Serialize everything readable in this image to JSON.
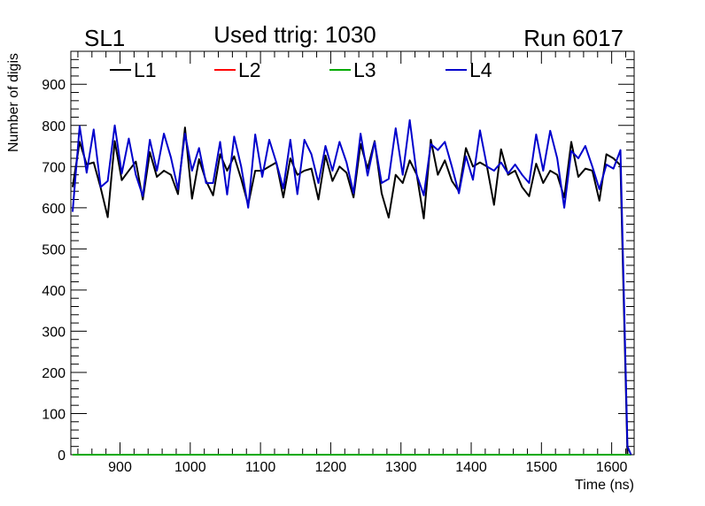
{
  "header": {
    "left_label": "SL1",
    "center_label": "Used ttrig: 1030",
    "right_label": "Run 6017"
  },
  "chart_data": {
    "type": "line",
    "title": "Used ttrig: 1030",
    "xlabel": "Time (ns)",
    "ylabel": "Number of digis",
    "xlim": [
      830,
      1632
    ],
    "ylim": [
      0,
      980
    ],
    "xticks": [
      900,
      1000,
      1100,
      1200,
      1300,
      1400,
      1500,
      1600
    ],
    "yticks": [
      0,
      100,
      200,
      300,
      400,
      500,
      600,
      700,
      800,
      900
    ],
    "legend_position": "top-left",
    "series": [
      {
        "name": "L1",
        "color": "#000000",
        "x": [
          832.5,
          842.5,
          852.5,
          862.5,
          872.5,
          882.5,
          892.5,
          902.5,
          912.5,
          922.5,
          932.5,
          942.5,
          952.5,
          962.5,
          972.5,
          982.5,
          992.5,
          1002.5,
          1012.5,
          1022.5,
          1032.5,
          1042.5,
          1052.5,
          1062.5,
          1072.5,
          1082.5,
          1092.5,
          1102.5,
          1112.5,
          1122.5,
          1132.5,
          1142.5,
          1152.5,
          1162.5,
          1172.5,
          1182.5,
          1192.5,
          1202.5,
          1212.5,
          1222.5,
          1232.5,
          1242.5,
          1252.5,
          1262.5,
          1272.5,
          1282.5,
          1292.5,
          1302.5,
          1312.5,
          1322.5,
          1332.5,
          1342.5,
          1352.5,
          1362.5,
          1372.5,
          1382.5,
          1392.5,
          1402.5,
          1412.5,
          1422.5,
          1432.5,
          1442.5,
          1452.5,
          1462.5,
          1472.5,
          1482.5,
          1492.5,
          1502.5,
          1512.5,
          1522.5,
          1532.5,
          1542.5,
          1552.5,
          1562.5,
          1572.5,
          1582.5,
          1592.5,
          1602.5,
          1612.5,
          1622.5,
          1627.5
        ],
        "values": [
          650,
          760,
          705,
          710,
          648,
          577,
          762,
          667,
          690,
          712,
          620,
          735,
          675,
          690,
          680,
          633,
          795,
          622,
          718,
          665,
          630,
          730,
          690,
          725,
          670,
          607,
          690,
          690,
          700,
          710,
          625,
          720,
          680,
          690,
          695,
          620,
          727,
          665,
          700,
          685,
          625,
          755,
          695,
          762,
          635,
          576,
          680,
          660,
          715,
          680,
          574,
          765,
          680,
          715,
          665,
          640,
          745,
          700,
          710,
          700,
          607,
          742,
          680,
          690,
          650,
          628,
          707,
          660,
          690,
          680,
          625,
          760,
          675,
          695,
          690,
          617,
          730,
          720,
          703,
          0,
          0
        ]
      },
      {
        "name": "L2",
        "color": "#ff0000",
        "x": [
          832.5,
          1627.5
        ],
        "values": [
          0,
          0
        ]
      },
      {
        "name": "L3",
        "color": "#00aa00",
        "x": [
          832.5,
          1627.5
        ],
        "values": [
          0,
          0
        ]
      },
      {
        "name": "L4",
        "color": "#0000cc",
        "x": [
          832.5,
          842.5,
          852.5,
          862.5,
          872.5,
          882.5,
          892.5,
          902.5,
          912.5,
          922.5,
          932.5,
          942.5,
          952.5,
          962.5,
          972.5,
          982.5,
          992.5,
          1002.5,
          1012.5,
          1022.5,
          1032.5,
          1042.5,
          1052.5,
          1062.5,
          1072.5,
          1082.5,
          1092.5,
          1102.5,
          1112.5,
          1122.5,
          1132.5,
          1142.5,
          1152.5,
          1162.5,
          1172.5,
          1182.5,
          1192.5,
          1202.5,
          1212.5,
          1222.5,
          1232.5,
          1242.5,
          1252.5,
          1262.5,
          1272.5,
          1282.5,
          1292.5,
          1302.5,
          1312.5,
          1322.5,
          1332.5,
          1342.5,
          1352.5,
          1362.5,
          1372.5,
          1382.5,
          1392.5,
          1402.5,
          1412.5,
          1422.5,
          1432.5,
          1442.5,
          1452.5,
          1462.5,
          1472.5,
          1482.5,
          1492.5,
          1502.5,
          1512.5,
          1522.5,
          1532.5,
          1542.5,
          1552.5,
          1562.5,
          1572.5,
          1582.5,
          1592.5,
          1602.5,
          1612.5,
          1622.5,
          1627.5
        ],
        "values": [
          590,
          798,
          685,
          790,
          650,
          665,
          800,
          683,
          768,
          680,
          628,
          765,
          690,
          780,
          722,
          645,
          780,
          690,
          745,
          660,
          660,
          760,
          632,
          773,
          700,
          600,
          778,
          675,
          765,
          710,
          647,
          765,
          633,
          765,
          730,
          660,
          750,
          690,
          760,
          710,
          635,
          780,
          678,
          760,
          660,
          670,
          793,
          680,
          813,
          680,
          630,
          755,
          740,
          760,
          700,
          635,
          725,
          668,
          788,
          700,
          690,
          710,
          683,
          705,
          680,
          660,
          778,
          690,
          787,
          720,
          600,
          738,
          720,
          750,
          700,
          645,
          705,
          695,
          740,
          20,
          0
        ]
      }
    ]
  }
}
